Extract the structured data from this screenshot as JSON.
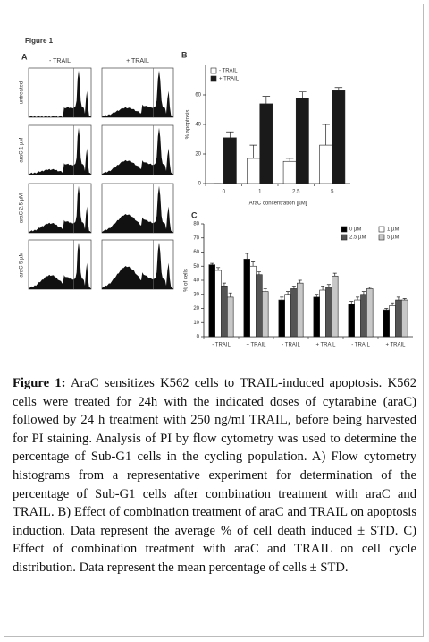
{
  "figure_label": "Figure 1",
  "panel_a": {
    "letter": "A",
    "columns": [
      "- TRAIL",
      "+ TRAIL"
    ],
    "rows": [
      "untreated",
      "araC 1 µM",
      "araC 2.5 µM",
      "araC 5 µM"
    ]
  },
  "panel_b_letter": "B",
  "panel_c_letter": "C",
  "chart_data": [
    {
      "type": "bar",
      "y_label": "% apoptosis",
      "x_label": "AraC concentration [µM]",
      "categories": [
        "0",
        "1",
        "2.5",
        "5"
      ],
      "series": [
        {
          "name": "- TRAIL",
          "color": "#ffffff",
          "values": [
            0,
            17,
            15,
            26
          ],
          "errors": [
            0,
            9,
            2,
            14
          ]
        },
        {
          "name": "+ TRAIL",
          "color": "#1a1a1a",
          "values": [
            31,
            54,
            58,
            63
          ],
          "errors": [
            4,
            5,
            4,
            2
          ]
        }
      ],
      "ylim": [
        0,
        80
      ],
      "yticks": [
        0,
        20,
        40,
        60
      ],
      "legend": "upper left"
    },
    {
      "type": "bar",
      "y_label": "% of cells",
      "categories": [
        "- TRAIL",
        "+ TRAIL",
        "- TRAIL",
        "+ TRAIL",
        "- TRAIL",
        "+ TRAIL"
      ],
      "series": [
        {
          "name": "0 µM",
          "color": "#000000",
          "values": [
            51,
            55,
            26,
            28,
            23,
            19
          ],
          "errors": [
            1,
            4,
            2,
            2,
            2,
            1
          ]
        },
        {
          "name": "1 µM",
          "color": "#ffffff",
          "values": [
            47,
            50,
            30,
            33,
            26,
            22
          ],
          "errors": [
            2,
            3,
            2,
            3,
            2,
            2
          ]
        },
        {
          "name": "2.5 µM",
          "color": "#555555",
          "values": [
            36,
            44,
            34,
            35,
            30,
            26
          ],
          "errors": [
            2,
            2,
            2,
            2,
            2,
            2
          ]
        },
        {
          "name": "5 µM",
          "color": "#c8c8c8",
          "values": [
            28,
            32,
            38,
            43,
            34,
            26
          ],
          "errors": [
            3,
            2,
            2,
            2,
            1,
            1
          ]
        }
      ],
      "ylim": [
        0,
        80
      ],
      "yticks": [
        0,
        10,
        20,
        30,
        40,
        50,
        60,
        70,
        80
      ],
      "legend": "upper right"
    }
  ],
  "caption": {
    "label": "Figure 1:",
    "text": "AraC sensitizes K562 cells to TRAIL-induced apoptosis. K562 cells were treated for 24h with the indicated doses of cytarabine (araC) followed by 24 h treatment with 250 ng/ml TRAIL, before being harvested for PI staining. Analysis of PI by flow cytometry was used to determine the percentage of Sub-G1 cells in the cycling population. A) Flow cytometry histograms from a representative experiment for determination of the percentage of Sub-G1 cells after combination treatment with araC and TRAIL. B) Effect of combination treatment of araC and TRAIL on apoptosis induction. Data represent the average % of cell death induced ± STD. C) Effect of combination treatment with araC and TRAIL on cell cycle distribution. Data represent the mean percentage of cells ± STD."
  }
}
